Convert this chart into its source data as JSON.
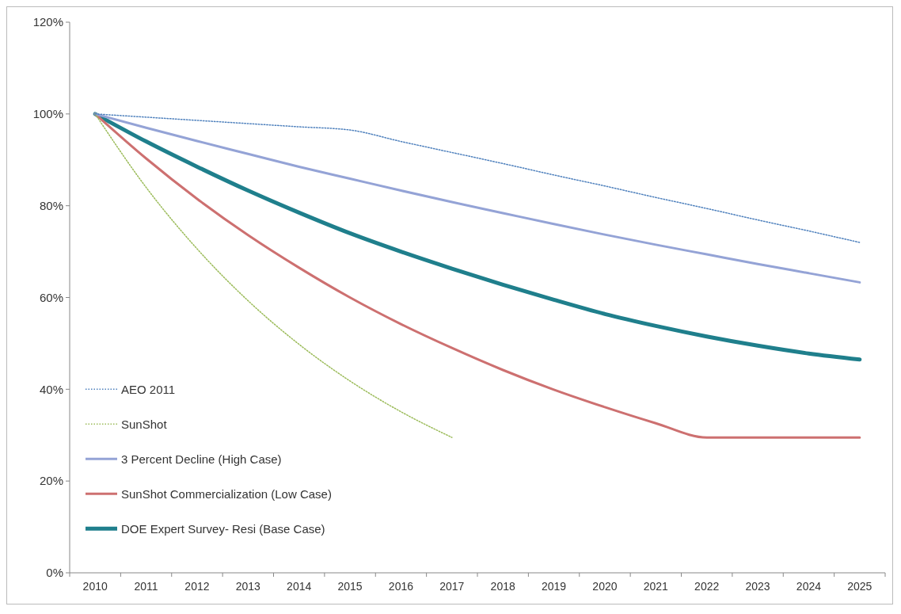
{
  "chart_data": {
    "type": "line",
    "categories": [
      "2010",
      "2011",
      "2012",
      "2013",
      "2014",
      "2015",
      "2016",
      "2017",
      "2018",
      "2019",
      "2020",
      "2021",
      "2022",
      "2023",
      "2024",
      "2025"
    ],
    "ylim": [
      0,
      120
    ],
    "yticks": [
      {
        "value": 0,
        "label": "0%"
      },
      {
        "value": 20,
        "label": "20%"
      },
      {
        "value": 40,
        "label": "40%"
      },
      {
        "value": 60,
        "label": "60%"
      },
      {
        "value": 80,
        "label": "80%"
      },
      {
        "value": 100,
        "label": "100%"
      },
      {
        "value": 120,
        "label": "120%"
      }
    ],
    "grid": false,
    "legend": "bottom left",
    "series": [
      {
        "name": "AEO 2011",
        "color": "#4f81bd",
        "line_style": "dotted",
        "values": [
          100,
          99.3,
          98.6,
          97.9,
          97.2,
          96.5,
          94,
          91.6,
          89.2,
          86.7,
          84.3,
          81.8,
          79.4,
          76.9,
          74.5,
          72
        ]
      },
      {
        "name": "SunShot",
        "color": "#9bbb59",
        "line_style": "dotted",
        "values": [
          100,
          84,
          70.6,
          59.3,
          49.8,
          41.8,
          35.1,
          29.5,
          null,
          null,
          null,
          null,
          null,
          null,
          null,
          null
        ]
      },
      {
        "name": "3 Percent Decline (High Case)",
        "color": "#94a3d6",
        "line_style": "solid",
        "values": [
          100,
          97,
          94.1,
          91.3,
          88.5,
          85.9,
          83.3,
          80.8,
          78.4,
          76,
          73.7,
          71.5,
          69.4,
          67.3,
          65.3,
          63.3
        ]
      },
      {
        "name": "SunShot Commercialization (Low Case)",
        "color": "#cd7070",
        "line_style": "solid",
        "values": [
          100,
          90.3,
          81.5,
          73.6,
          66.5,
          60,
          54.2,
          49,
          44.2,
          39.9,
          36.1,
          32.6,
          29.5,
          29.5,
          29.5,
          29.5
        ]
      },
      {
        "name": "DOE Expert Survey- Resi (Base Case)",
        "color": "#1f7f8c",
        "line_style": "solid",
        "values": [
          100,
          94,
          88.5,
          83.3,
          78.5,
          74,
          70,
          66.3,
          62.8,
          59.5,
          56.4,
          53.8,
          51.5,
          49.5,
          47.8,
          46.5
        ]
      }
    ]
  }
}
